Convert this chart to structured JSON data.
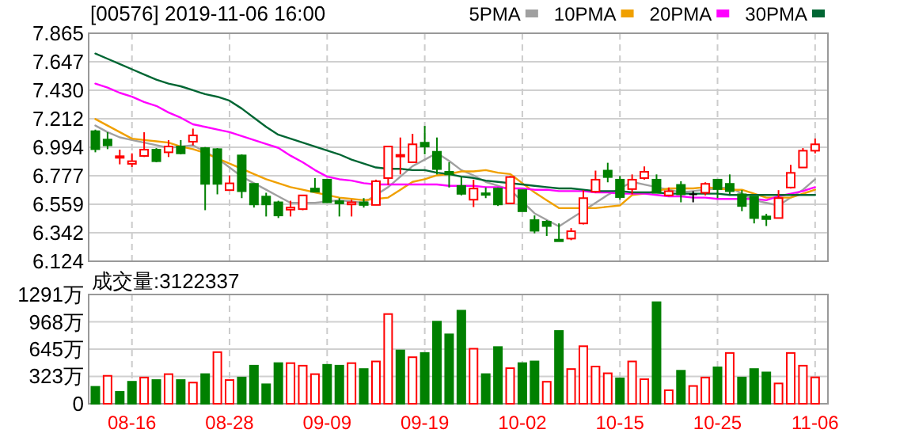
{
  "chart_data": [
    {
      "type": "candlestick",
      "title": "[00576] 2019-11-06 16:00",
      "tick_labels": "y",
      "grid": true,
      "legend": "top right",
      "categories": [
        null,
        null,
        null,
        null,
        null,
        null,
        null,
        null,
        null,
        null,
        null,
        null,
        null,
        null,
        null,
        null,
        null,
        null,
        null,
        null,
        null,
        null,
        null,
        null,
        null,
        null,
        null,
        null,
        null,
        null,
        null,
        null,
        null,
        null,
        null,
        null,
        null,
        null,
        null,
        null,
        null,
        null,
        null,
        null,
        null,
        null,
        null,
        null,
        null,
        null,
        null,
        null,
        null,
        null,
        null,
        null,
        null,
        null,
        null,
        null
      ],
      "ylim": [
        6.124,
        7.865
      ],
      "yticks": [
        6.124,
        6.342,
        6.559,
        6.777,
        6.994,
        7.212,
        {
          "value": 7.43,
          "label": "7.430"
        },
        7.647,
        7.865
      ],
      "ohlc": [
        [
          7.117,
          7.129,
          6.956,
          6.98
        ],
        [
          7.053,
          7.109,
          6.98,
          7.009
        ],
        [
          6.92,
          6.976,
          6.864,
          6.926
        ],
        [
          6.868,
          6.948,
          6.844,
          6.888
        ],
        [
          6.928,
          7.109,
          6.92,
          6.976
        ],
        [
          6.976,
          6.988,
          6.88,
          6.888
        ],
        [
          6.956,
          7.049,
          6.92,
          7.0
        ],
        [
          7.0,
          7.049,
          6.94,
          6.948
        ],
        [
          7.037,
          7.137,
          7.009,
          7.085
        ],
        [
          6.988,
          6.996,
          6.514,
          6.715
        ],
        [
          6.98,
          6.988,
          6.635,
          6.715
        ],
        [
          6.667,
          6.779,
          6.667,
          6.719
        ],
        [
          6.932,
          6.94,
          6.606,
          6.659
        ],
        [
          6.715,
          6.715,
          6.534,
          6.558
        ],
        [
          6.618,
          6.647,
          6.466,
          6.558
        ],
        [
          6.574,
          6.586,
          6.454,
          6.474
        ],
        [
          6.518,
          6.586,
          6.466,
          6.534
        ],
        [
          6.522,
          6.627,
          6.514,
          6.627
        ],
        [
          6.679,
          6.759,
          6.655,
          6.655
        ],
        [
          6.747,
          6.747,
          6.574,
          6.574
        ],
        [
          6.582,
          6.606,
          6.466,
          6.566
        ],
        [
          6.558,
          6.594,
          6.466,
          6.574
        ],
        [
          6.574,
          6.606,
          6.534,
          6.554
        ],
        [
          6.554,
          6.747,
          6.554,
          6.735
        ],
        [
          6.759,
          7.0,
          6.707,
          7.0
        ],
        [
          6.924,
          7.069,
          6.787,
          6.936
        ],
        [
          6.88,
          7.097,
          6.88,
          7.017
        ],
        [
          7.029,
          7.157,
          6.94,
          7.0
        ],
        [
          6.96,
          7.069,
          6.787,
          6.828
        ],
        [
          6.807,
          6.88,
          6.687,
          6.787
        ],
        [
          6.699,
          6.767,
          6.627,
          6.639
        ],
        [
          6.594,
          6.747,
          6.538,
          6.679
        ],
        [
          6.643,
          6.687,
          6.606,
          6.635
        ],
        [
          6.679,
          6.687,
          6.546,
          6.558
        ],
        [
          6.566,
          6.775,
          6.566,
          6.767
        ],
        [
          6.667,
          6.667,
          6.506,
          6.506
        ],
        [
          6.438,
          6.474,
          6.337,
          6.357
        ],
        [
          6.426,
          6.438,
          6.317,
          6.393
        ],
        [
          6.289,
          6.413,
          6.277,
          6.285
        ],
        [
          6.297,
          6.377,
          6.285,
          6.353
        ],
        [
          6.413,
          6.667,
          6.405,
          6.606
        ],
        [
          6.655,
          6.816,
          6.647,
          6.747
        ],
        [
          6.816,
          6.876,
          6.727,
          6.767
        ],
        [
          6.747,
          6.775,
          6.594,
          6.614
        ],
        [
          6.675,
          6.787,
          6.635,
          6.747
        ],
        [
          6.759,
          6.848,
          6.747,
          6.807
        ],
        [
          6.747,
          6.787,
          6.647,
          6.647
        ],
        [
          6.627,
          6.687,
          6.618,
          6.659
        ],
        [
          6.707,
          6.735,
          6.574,
          6.635
        ],
        [
          6.635,
          6.659,
          6.574,
          6.635
        ],
        [
          6.647,
          6.727,
          6.627,
          6.715
        ],
        [
          6.747,
          6.747,
          6.606,
          6.675
        ],
        [
          6.715,
          6.787,
          6.635,
          6.659
        ],
        [
          6.635,
          6.667,
          6.506,
          6.546
        ],
        [
          6.618,
          6.618,
          6.413,
          6.454
        ],
        [
          6.466,
          6.486,
          6.393,
          6.446
        ],
        [
          6.454,
          6.667,
          6.454,
          6.606
        ],
        [
          6.687,
          6.86,
          6.679,
          6.799
        ],
        [
          6.84,
          6.988,
          6.84,
          6.968
        ],
        [
          6.968,
          7.061,
          6.948,
          7.017
        ]
      ],
      "colors": [
        "#008000",
        "#008000",
        "#ff0000",
        "#ff0000",
        "#ff0000",
        "#008000",
        "#ff0000",
        "#008000",
        "#ff0000",
        "#008000",
        "#008000",
        "#ff0000",
        "#008000",
        "#008000",
        "#008000",
        "#008000",
        "#ff0000",
        "#ff0000",
        "#008000",
        "#008000",
        "#008000",
        "#ff0000",
        "#008000",
        "#ff0000",
        "#ff0000",
        "#ff0000",
        "#ff0000",
        "#008000",
        "#008000",
        "#008000",
        "#008000",
        "#ff0000",
        "#008000",
        "#008000",
        "#ff0000",
        "#008000",
        "#008000",
        "#008000",
        "#008000",
        "#ff0000",
        "#ff0000",
        "#ff0000",
        "#008000",
        "#008000",
        "#ff0000",
        "#ff0000",
        "#008000",
        "#ff0000",
        "#008000",
        "#000000",
        "#ff0000",
        "#008000",
        "#008000",
        "#008000",
        "#008000",
        "#008000",
        "#ff0000",
        "#ff0000",
        "#ff0000",
        "#ff0000"
      ],
      "series": [
        {
          "type": "line",
          "name": "5PMA",
          "color": "#a0a0a0",
          "values": [
            7.16,
            7.11,
            7.07,
            7.05,
            7.03,
            7.01,
            6.99,
            7.0,
            7.01,
            6.96,
            6.91,
            6.84,
            6.77,
            6.72,
            6.67,
            6.62,
            6.57,
            6.57,
            6.57,
            6.58,
            6.59,
            6.58,
            6.57,
            6.63,
            6.69,
            6.77,
            6.85,
            6.9,
            6.95,
            6.89,
            6.82,
            6.78,
            6.73,
            6.7,
            6.67,
            6.58,
            6.49,
            6.44,
            6.39,
            6.45,
            6.51,
            6.57,
            6.63,
            6.68,
            6.73,
            6.71,
            6.69,
            6.67,
            6.65,
            6.66,
            6.67,
            6.68,
            6.69,
            6.64,
            6.59,
            6.57,
            6.55,
            6.61,
            6.67,
            6.75
          ]
        },
        {
          "type": "line",
          "name": "10PMA",
          "color": "#f0a000",
          "values": [
            7.21,
            7.16,
            7.11,
            7.06,
            7.05,
            7.04,
            7.03,
            7.0,
            6.98,
            6.95,
            6.91,
            6.87,
            6.83,
            6.79,
            6.75,
            6.72,
            6.69,
            6.67,
            6.65,
            6.63,
            6.61,
            6.6,
            6.59,
            6.6,
            6.61,
            6.67,
            6.73,
            6.75,
            6.78,
            6.79,
            6.81,
            6.81,
            6.82,
            6.8,
            6.79,
            6.72,
            6.65,
            6.59,
            6.53,
            6.53,
            6.53,
            6.53,
            6.54,
            6.55,
            6.63,
            6.64,
            6.66,
            6.68,
            6.68,
            6.68,
            6.69,
            6.68,
            6.67,
            6.67,
            6.64,
            6.61,
            6.61,
            6.61,
            6.64,
            6.67
          ]
        },
        {
          "type": "line",
          "name": "20PMA",
          "color": "#ff00ff",
          "values": [
            7.48,
            7.45,
            7.41,
            7.38,
            7.34,
            7.31,
            7.26,
            7.22,
            7.17,
            7.15,
            7.13,
            7.11,
            7.08,
            7.05,
            7.02,
            6.99,
            6.93,
            6.88,
            6.82,
            6.77,
            6.75,
            6.74,
            6.72,
            6.71,
            6.71,
            6.71,
            6.71,
            6.71,
            6.71,
            6.7,
            6.7,
            6.7,
            6.69,
            6.69,
            6.68,
            6.68,
            6.67,
            6.67,
            6.66,
            6.66,
            6.66,
            6.65,
            6.65,
            6.64,
            6.64,
            6.64,
            6.63,
            6.62,
            6.62,
            6.61,
            6.61,
            6.6,
            6.6,
            6.6,
            6.6,
            6.59,
            6.62,
            6.64,
            6.66,
            6.69
          ]
        },
        {
          "type": "line",
          "name": "30PMA",
          "color": "#006633",
          "values": [
            7.71,
            7.67,
            7.63,
            7.59,
            7.55,
            7.51,
            7.48,
            7.46,
            7.43,
            7.4,
            7.38,
            7.35,
            7.29,
            7.22,
            7.15,
            7.09,
            7.06,
            7.03,
            7.0,
            6.97,
            6.94,
            6.9,
            6.87,
            6.84,
            6.83,
            6.83,
            6.82,
            6.82,
            6.8,
            6.79,
            6.77,
            6.76,
            6.74,
            6.73,
            6.72,
            6.71,
            6.7,
            6.69,
            6.68,
            6.68,
            6.67,
            6.66,
            6.66,
            6.66,
            6.65,
            6.65,
            6.65,
            6.64,
            6.64,
            6.64,
            6.64,
            6.64,
            6.63,
            6.63,
            6.63,
            6.63,
            6.63,
            6.63,
            6.63,
            6.63
          ]
        }
      ]
    },
    {
      "type": "bar",
      "grid": true,
      "annotations": [
        "成交量:3122337"
      ],
      "categories": [
        null,
        null,
        null,
        "08-16",
        null,
        null,
        null,
        null,
        null,
        null,
        null,
        "08-28",
        null,
        null,
        null,
        null,
        null,
        null,
        null,
        "09-09",
        null,
        null,
        null,
        null,
        null,
        null,
        null,
        "09-19",
        null,
        null,
        null,
        null,
        null,
        null,
        null,
        "10-02",
        null,
        null,
        null,
        null,
        null,
        null,
        null,
        "10-15",
        null,
        null,
        null,
        null,
        null,
        null,
        null,
        "10-25",
        null,
        null,
        null,
        null,
        null,
        null,
        null,
        "11-06"
      ],
      "ylim": [
        0,
        1291
      ],
      "yticks": [
        0,
        {
          "value": 323,
          "label": "323万"
        },
        {
          "value": 645,
          "label": "645万"
        },
        {
          "value": 968,
          "label": "968万"
        },
        {
          "value": 1291,
          "label": "1291万"
        }
      ],
      "values": [
        200,
        330,
        140,
        260,
        310,
        280,
        350,
        280,
        250,
        350,
        610,
        280,
        310,
        450,
        230,
        480,
        480,
        450,
        350,
        460,
        450,
        480,
        410,
        500,
        1060,
        630,
        550,
        600,
        970,
        820,
        1100,
        650,
        350,
        670,
        420,
        480,
        500,
        260,
        860,
        410,
        680,
        440,
        360,
        300,
        500,
        290,
        1200,
        160,
        390,
        210,
        310,
        430,
        600,
        310,
        410,
        370,
        240,
        600,
        450,
        312
      ],
      "colors": [
        "#008000",
        "#ff0000",
        "#008000",
        "#008000",
        "#ff0000",
        "#008000",
        "#ff0000",
        "#008000",
        "#ff0000",
        "#008000",
        "#ff0000",
        "#ff0000",
        "#008000",
        "#008000",
        "#008000",
        "#008000",
        "#ff0000",
        "#ff0000",
        "#ff0000",
        "#008000",
        "#008000",
        "#ff0000",
        "#008000",
        "#ff0000",
        "#ff0000",
        "#008000",
        "#ff0000",
        "#008000",
        "#008000",
        "#008000",
        "#008000",
        "#ff0000",
        "#008000",
        "#008000",
        "#ff0000",
        "#008000",
        "#008000",
        "#ff0000",
        "#008000",
        "#ff0000",
        "#ff0000",
        "#ff0000",
        "#ff0000",
        "#008000",
        "#ff0000",
        "#ff0000",
        "#008000",
        "#ff0000",
        "#008000",
        "#ff0000",
        "#ff0000",
        "#008000",
        "#ff0000",
        "#008000",
        "#008000",
        "#008000",
        "#ff0000",
        "#ff0000",
        "#ff0000",
        "#ff0000"
      ]
    }
  ]
}
